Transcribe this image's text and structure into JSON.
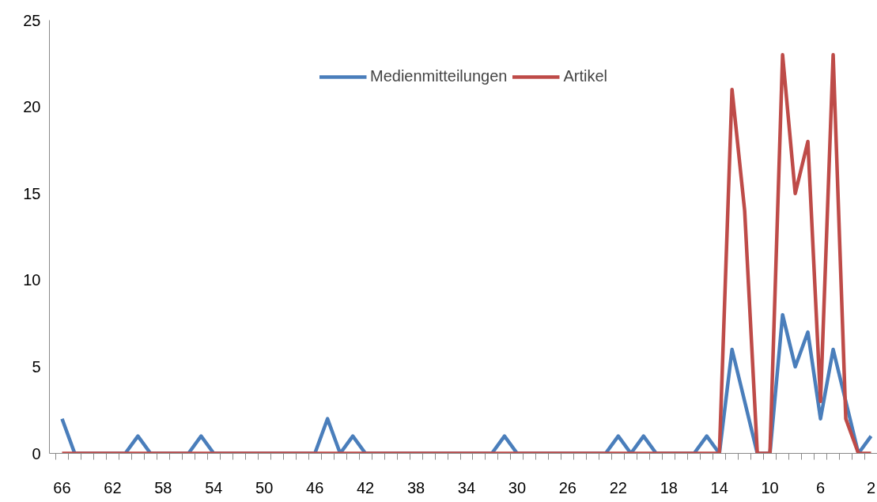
{
  "chart_data": {
    "type": "line",
    "categories": [
      "66",
      null,
      null,
      null,
      "62",
      null,
      null,
      null,
      "58",
      null,
      null,
      null,
      "54",
      null,
      null,
      null,
      "50",
      null,
      null,
      null,
      "46",
      null,
      null,
      null,
      "42",
      null,
      null,
      null,
      "38",
      null,
      null,
      null,
      "34",
      null,
      null,
      null,
      "30",
      null,
      null,
      null,
      "26",
      null,
      null,
      null,
      "22",
      null,
      null,
      null,
      "18",
      null,
      null,
      null,
      "14",
      null,
      null,
      null,
      "10",
      null,
      null,
      null,
      "6",
      null,
      null,
      null,
      "2"
    ],
    "series": [
      {
        "name": "Medienmitteilungen",
        "color": "#4a7ebb",
        "values": [
          2,
          0,
          0,
          0,
          0,
          0,
          1,
          0,
          0,
          0,
          0,
          1,
          0,
          0,
          0,
          0,
          0,
          0,
          0,
          0,
          0,
          2,
          0,
          1,
          0,
          0,
          0,
          0,
          0,
          0,
          0,
          0,
          0,
          0,
          0,
          1,
          0,
          0,
          0,
          0,
          0,
          0,
          0,
          0,
          1,
          0,
          1,
          0,
          0,
          0,
          0,
          1,
          0,
          6,
          3,
          0,
          0,
          8,
          5,
          7,
          2,
          6,
          3,
          0,
          1
        ]
      },
      {
        "name": "Artikel",
        "color": "#be4b48",
        "values": [
          0,
          0,
          0,
          0,
          0,
          0,
          0,
          0,
          0,
          0,
          0,
          0,
          0,
          0,
          0,
          0,
          0,
          0,
          0,
          0,
          0,
          0,
          0,
          0,
          0,
          0,
          0,
          0,
          0,
          0,
          0,
          0,
          0,
          0,
          0,
          0,
          0,
          0,
          0,
          0,
          0,
          0,
          0,
          0,
          0,
          0,
          0,
          0,
          0,
          0,
          0,
          0,
          0,
          21,
          14,
          0,
          0,
          23,
          15,
          18,
          3,
          23,
          2,
          0,
          0
        ]
      }
    ],
    "ylim": [
      0,
      25
    ],
    "yticks": [
      0,
      5,
      10,
      15,
      20,
      25
    ],
    "grid": false,
    "legend": "top",
    "marker": "none",
    "line_style": "solid"
  }
}
